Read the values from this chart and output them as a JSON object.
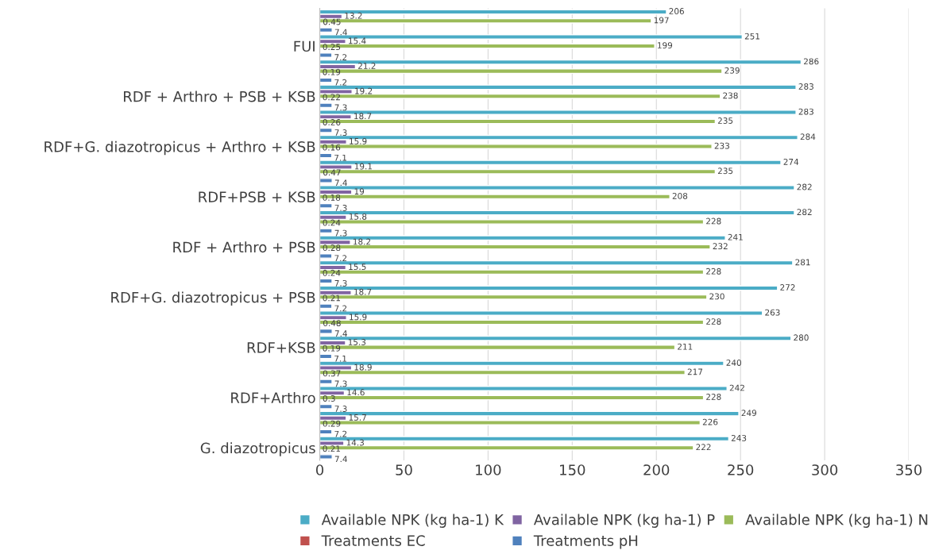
{
  "chart_data": {
    "type": "bar",
    "orientation": "horizontal",
    "categories": [
      null,
      "FUI",
      null,
      "RDF + Arthro + PSB + KSB",
      null,
      "RDF+G. diazotropicus + Arthro + KSB",
      null,
      "RDF+PSB + KSB",
      null,
      "RDF + Arthro + PSB",
      null,
      "RDF+G. diazotropicus + PSB",
      null,
      "RDF+KSB",
      null,
      "RDF+Arthro",
      null,
      "G. diazotropicus"
    ],
    "series": [
      {
        "name": "Available NPK (kg ha-1) K",
        "color": "#4bacc6",
        "values": [
          206,
          251,
          286,
          283,
          283,
          284,
          274,
          282,
          282,
          241,
          281,
          272,
          263,
          280,
          240,
          242,
          249,
          243
        ]
      },
      {
        "name": "Available NPK (kg ha-1) P",
        "color": "#8064a2",
        "values": [
          13.2,
          15.4,
          21.2,
          19.2,
          18.7,
          15.9,
          19.1,
          19,
          15.8,
          18.2,
          15.5,
          18.7,
          15.9,
          15.3,
          18.9,
          14.6,
          15.7,
          14.3
        ]
      },
      {
        "name": "Available NPK (kg ha-1) N",
        "color": "#9bbb59",
        "values": [
          197,
          199,
          239,
          238,
          235,
          233,
          235,
          208,
          228,
          232,
          228,
          230,
          228,
          211,
          217,
          228,
          226,
          222
        ]
      },
      {
        "name": "Treatments EC",
        "color": "#c0504d",
        "values": [
          0.45,
          0.25,
          0.19,
          0.22,
          0.26,
          0.16,
          0.47,
          0.18,
          0.24,
          0.28,
          0.24,
          0.21,
          0.48,
          0.19,
          0.37,
          0.3,
          0.29,
          0.21
        ]
      },
      {
        "name": "Treatments pH",
        "color": "#4f81bd",
        "values": [
          7.4,
          7.2,
          7.2,
          7.3,
          7.3,
          7.1,
          7.4,
          7.3,
          7.3,
          7.2,
          7.3,
          7.2,
          7.4,
          7.1,
          7.3,
          7.3,
          7.2,
          7.4
        ]
      }
    ],
    "xlim": [
      0,
      350
    ],
    "xticks": [
      0,
      50,
      100,
      150,
      200,
      250,
      300,
      350
    ],
    "grid": "x",
    "legend": "bottom",
    "data_labels": true
  }
}
